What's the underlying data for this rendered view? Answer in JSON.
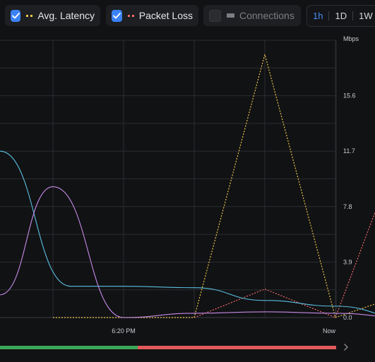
{
  "legend": [
    {
      "label": "Avg. Latency",
      "checked": true,
      "color": "#e8c64a",
      "swatch": "dotted"
    },
    {
      "label": "Packet Loss",
      "checked": true,
      "color": "#ef6a6a",
      "swatch": "dotted"
    },
    {
      "label": "Connections",
      "checked": false,
      "color": "#7b7e84",
      "swatch": "solid"
    }
  ],
  "time_range": {
    "options": [
      "1h",
      "1D",
      "1W"
    ],
    "selected": "1h"
  },
  "chart_data": {
    "type": "line",
    "unit_label": "Mbps",
    "y_ticks": [
      "0.0",
      "3.9",
      "7.8",
      "11.7",
      "15.6"
    ],
    "ylim": [
      0,
      19.5
    ],
    "x_labels": [
      "6:20 PM",
      "Now"
    ],
    "grid": true,
    "series": [
      {
        "name": "Avg. Latency",
        "color": "#e8c64a",
        "style": "dotted",
        "x": [
          0,
          1,
          2,
          3,
          4,
          5
        ],
        "values": [
          0.0,
          0.0,
          0.0,
          18.5,
          0.0,
          1.7
        ]
      },
      {
        "name": "Packet Loss",
        "color": "#ef6a6a",
        "style": "dotted",
        "x": [
          2,
          3,
          4,
          5
        ],
        "values": [
          0.0,
          2.0,
          0.0,
          13.2
        ]
      },
      {
        "color": "#5bbfe0",
        "style": "smooth",
        "x": [
          -0.75,
          0.25,
          1.0,
          2.0,
          3.0,
          4.0,
          5.0
        ],
        "values": [
          11.7,
          2.2,
          2.2,
          2.1,
          1.2,
          0.8,
          0.0
        ]
      },
      {
        "color": "#c88ae8",
        "style": "smooth",
        "x": [
          -0.75,
          0.0,
          1.0,
          2.0,
          3.0,
          4.0,
          5.0
        ],
        "values": [
          1.6,
          9.2,
          0.0,
          0.3,
          0.4,
          0.3,
          0.0
        ]
      }
    ]
  },
  "range_bar": {
    "green": "#3aa657",
    "red": "#e45a5a",
    "split": 0.41
  }
}
